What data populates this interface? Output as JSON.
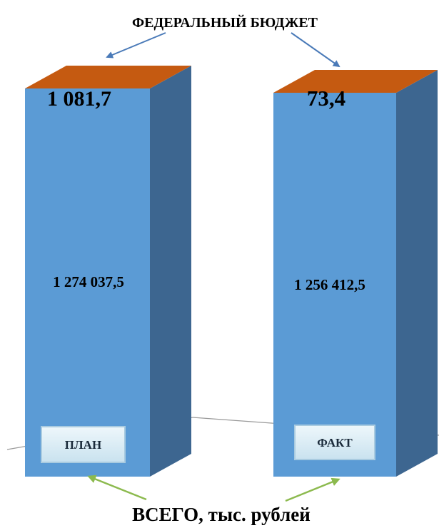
{
  "chart_data": {
    "type": "bar",
    "stacked": true,
    "three_d": true,
    "categories": [
      "ПЛАН",
      "ФАКТ"
    ],
    "series": [
      {
        "name": "ВСЕГО, тыс. рублей",
        "values": [
          1274037.5,
          1256412.5
        ],
        "labels": [
          "1 274 037,5",
          "1 256 412,5"
        ],
        "color": "#5b9bd5"
      },
      {
        "name": "ФЕДЕРАЛЬНЫЙ БЮДЖЕТ",
        "values": [
          1081.7,
          73.4
        ],
        "labels": [
          "1 081,7",
          "73,4"
        ],
        "color": "#c55a11"
      }
    ],
    "title": "",
    "xlabel": "",
    "ylabel": "",
    "legend": "none",
    "grid": false
  },
  "annotations": {
    "federal_budget": "ФЕДЕРАЛЬНЫЙ БЮДЖЕТ",
    "total": "ВСЕГО, тыс. рублей"
  },
  "colors": {
    "bar_front": "#5b9bd5",
    "bar_side": "#3d6690",
    "bar_top": "#c55a11",
    "federal_arrow": "#4a7ab8",
    "total_arrow": "#8cba4e",
    "category_box": "#dfeef6"
  }
}
